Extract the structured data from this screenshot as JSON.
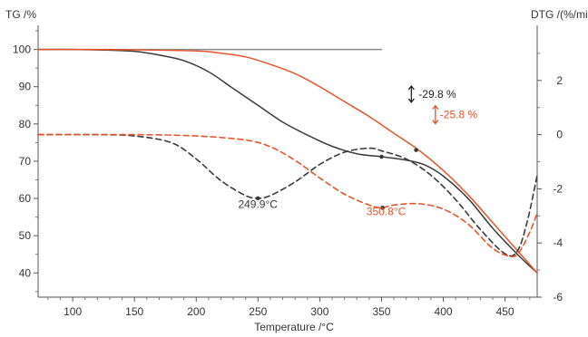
{
  "chart_data": {
    "type": "line",
    "xlabel": "Temperature /°C",
    "ylabel_left": "TG /%",
    "ylabel_right": "DTG /(%/min)",
    "xlim": [
      72,
      476
    ],
    "ylim_left": [
      33.5,
      105.5
    ],
    "ylim_right": [
      -6,
      3.9
    ],
    "x_ticks": [
      100,
      150,
      200,
      250,
      300,
      350,
      400,
      450
    ],
    "y_left_ticks": [
      40,
      50,
      60,
      70,
      80,
      90,
      100
    ],
    "y_right_ticks": [
      -6,
      -4,
      -2,
      0,
      2
    ],
    "grid": false,
    "colors": {
      "black": "#3a3a3a",
      "orange": "#e8542a",
      "gray": "#8a8a8a"
    },
    "series": [
      {
        "key": "tg_reference_flat",
        "axis": "left",
        "style": "solid",
        "color": "#8a8a8a",
        "x": [
          72,
          350
        ],
        "y": [
          100,
          100
        ]
      },
      {
        "key": "tg_black",
        "axis": "left",
        "style": "solid",
        "color": "#3a3a3a",
        "x": [
          72,
          100,
          130,
          150,
          170,
          190,
          210,
          230,
          250,
          270,
          290,
          310,
          330,
          350,
          370,
          385,
          400,
          420,
          440,
          460,
          476
        ],
        "y": [
          100,
          100,
          99.8,
          99.5,
          98.5,
          97,
          94,
          89.5,
          85,
          80.5,
          77,
          74,
          72,
          71.2,
          70.3,
          69,
          66,
          60,
          52,
          45,
          40
        ]
      },
      {
        "key": "tg_orange",
        "axis": "left",
        "style": "solid",
        "color": "#e8542a",
        "x": [
          72,
          100,
          150,
          200,
          220,
          240,
          260,
          280,
          300,
          320,
          340,
          360,
          380,
          400,
          420,
          440,
          460,
          476
        ],
        "y": [
          100,
          100,
          99.9,
          99.6,
          99,
          98,
          96,
          93.5,
          90,
          86,
          82,
          77.5,
          73,
          67.5,
          61,
          53.5,
          46,
          40
        ]
      },
      {
        "key": "dtg_black",
        "axis": "right",
        "style": "dashed",
        "color": "#3a3a3a",
        "x": [
          72,
          120,
          150,
          180,
          200,
          220,
          240,
          250,
          260,
          280,
          300,
          320,
          340,
          350,
          370,
          390,
          410,
          430,
          450,
          460,
          468,
          476
        ],
        "y": [
          0,
          0,
          -0.05,
          -0.3,
          -0.9,
          -1.7,
          -2.25,
          -2.35,
          -2.25,
          -1.75,
          -1.1,
          -0.65,
          -0.5,
          -0.6,
          -0.9,
          -1.5,
          -2.4,
          -3.5,
          -4.4,
          -4.3,
          -3.2,
          -1.5
        ]
      },
      {
        "key": "dtg_orange",
        "axis": "right",
        "style": "dashed",
        "color": "#e8542a",
        "x": [
          72,
          150,
          200,
          240,
          260,
          280,
          300,
          320,
          340,
          350,
          360,
          380,
          400,
          420,
          440,
          455,
          462,
          470,
          476
        ],
        "y": [
          0,
          0,
          -0.05,
          -0.2,
          -0.45,
          -0.95,
          -1.6,
          -2.2,
          -2.6,
          -2.7,
          -2.6,
          -2.55,
          -2.75,
          -3.3,
          -4.2,
          -4.5,
          -4.3,
          -3.6,
          -2.9
        ]
      }
    ],
    "markers": [
      {
        "axis": "left",
        "x": 350,
        "y": 71.2,
        "color": "#3a3a3a"
      },
      {
        "axis": "left",
        "x": 378,
        "y": 73.0,
        "color": "#3a3a3a"
      },
      {
        "axis": "right",
        "x": 249.9,
        "y": -2.35,
        "color": "#3a3a3a"
      },
      {
        "axis": "right",
        "x": 350.8,
        "y": -2.7,
        "color": "#3a3a3a"
      }
    ],
    "annotations": {
      "black_mass_loss": {
        "text": "-29.8 %",
        "color": "#222222",
        "x": 380,
        "y_left": 88
      },
      "orange_mass_loss": {
        "text": "-25.8 %",
        "color": "#e8542a",
        "x": 398,
        "y_left": 82.5
      },
      "black_peak": {
        "text": "249.9°C",
        "color": "#3a3a3a",
        "x": 249.9,
        "y_left": 57.5
      },
      "orange_peak": {
        "text": "350.8°C",
        "color": "#e8542a",
        "x": 350.8,
        "y_left": 55.5
      }
    }
  }
}
